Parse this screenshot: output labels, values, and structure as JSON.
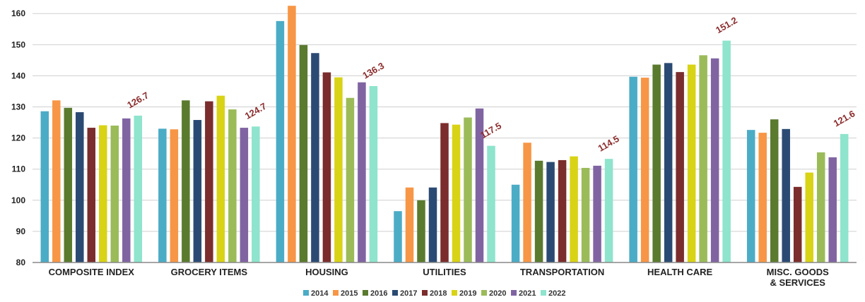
{
  "chart_data": {
    "type": "bar",
    "categories": [
      "COMPOSITE INDEX",
      "GROCERY ITEMS",
      "HOUSING",
      "UTILITIES",
      "TRANSPORTATION",
      "HEALTH CARE",
      "MISC. GOODS & SERVICES"
    ],
    "category_lines": [
      [
        "COMPOSITE INDEX"
      ],
      [
        "GROCERY ITEMS"
      ],
      [
        "HOUSING"
      ],
      [
        "UTILITIES"
      ],
      [
        "TRANSPORTATION"
      ],
      [
        "HEALTH CARE"
      ],
      [
        "MISC. GOODS",
        "& SERVICES"
      ]
    ],
    "series": [
      {
        "name": "2014",
        "color": "#4bacc6",
        "values": [
          128.6,
          123.0,
          157.6,
          96.5,
          105.0,
          139.7,
          122.6
        ]
      },
      {
        "name": "2015",
        "color": "#f79646",
        "values": [
          132.1,
          122.8,
          162.5,
          104.1,
          118.5,
          139.4,
          121.7
        ]
      },
      {
        "name": "2016",
        "color": "#5a7a2e",
        "values": [
          129.7,
          132.1,
          149.9,
          100.0,
          112.7,
          143.6,
          126.0
        ]
      },
      {
        "name": "2017",
        "color": "#2b4a73",
        "values": [
          128.3,
          125.8,
          147.3,
          104.1,
          112.3,
          144.1,
          122.9
        ]
      },
      {
        "name": "2018",
        "color": "#7b2c2c",
        "values": [
          123.3,
          131.8,
          141.1,
          124.8,
          112.9,
          141.2,
          104.3
        ]
      },
      {
        "name": "2019",
        "color": "#d8d315",
        "values": [
          124.1,
          133.6,
          139.5,
          124.3,
          114.1,
          143.6,
          108.9
        ]
      },
      {
        "name": "2020",
        "color": "#9bbb59",
        "values": [
          124.0,
          129.2,
          132.9,
          126.6,
          110.4,
          146.6,
          115.4
        ]
      },
      {
        "name": "2021",
        "color": "#8064a2",
        "values": [
          126.3,
          123.3,
          137.9,
          129.5,
          111.1,
          145.6,
          113.8
        ]
      },
      {
        "name": "2022",
        "color": "#8ee4cc",
        "values": [
          127.2,
          123.7,
          136.7,
          117.5,
          113.3,
          151.3,
          121.3
        ]
      }
    ],
    "annotations": [
      "126.7",
      "124.7",
      "136.3",
      "117.5",
      "114.5",
      "151.2",
      "121.6"
    ],
    "yticks": [
      80,
      90,
      100,
      110,
      120,
      130,
      140,
      150,
      160
    ],
    "ylim": [
      80,
      163
    ],
    "xlabel": "",
    "ylabel": "",
    "title": "",
    "grid": true,
    "legend_position": "bottom-center"
  }
}
